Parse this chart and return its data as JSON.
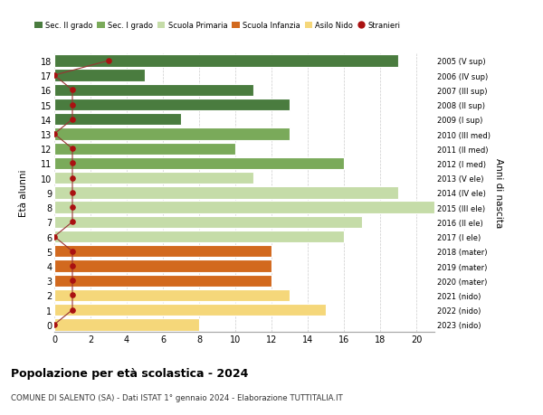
{
  "ages": [
    18,
    17,
    16,
    15,
    14,
    13,
    12,
    11,
    10,
    9,
    8,
    7,
    6,
    5,
    4,
    3,
    2,
    1,
    0
  ],
  "right_labels": [
    "2005 (V sup)",
    "2006 (IV sup)",
    "2007 (III sup)",
    "2008 (II sup)",
    "2009 (I sup)",
    "2010 (III med)",
    "2011 (II med)",
    "2012 (I med)",
    "2013 (V ele)",
    "2014 (IV ele)",
    "2015 (III ele)",
    "2016 (II ele)",
    "2017 (I ele)",
    "2018 (mater)",
    "2019 (mater)",
    "2020 (mater)",
    "2021 (nido)",
    "2022 (nido)",
    "2023 (nido)"
  ],
  "bar_values": [
    19,
    5,
    11,
    13,
    7,
    13,
    10,
    16,
    11,
    19,
    21,
    17,
    16,
    12,
    12,
    12,
    13,
    15,
    8
  ],
  "bar_colors": [
    "#4a7c3f",
    "#4a7c3f",
    "#4a7c3f",
    "#4a7c3f",
    "#4a7c3f",
    "#7aaa5a",
    "#7aaa5a",
    "#7aaa5a",
    "#c5dca8",
    "#c5dca8",
    "#c5dca8",
    "#c5dca8",
    "#c5dca8",
    "#d2691e",
    "#d2691e",
    "#d2691e",
    "#f5d77a",
    "#f5d77a",
    "#f5d77a"
  ],
  "stranieri_x": [
    3,
    0,
    1,
    1,
    1,
    0,
    1,
    1,
    1,
    1,
    1,
    1,
    0,
    1,
    1,
    1,
    1,
    1,
    0
  ],
  "legend_labels": [
    "Sec. II grado",
    "Sec. I grado",
    "Scuola Primaria",
    "Scuola Infanzia",
    "Asilo Nido",
    "Stranieri"
  ],
  "legend_colors": [
    "#4a7c3f",
    "#7aaa5a",
    "#c5dca8",
    "#d2691e",
    "#f5d77a",
    "#aa1111"
  ],
  "title": "Popolazione per età scolastica - 2024",
  "subtitle": "COMUNE DI SALENTO (SA) - Dati ISTAT 1° gennaio 2024 - Elaborazione TUTTITALIA.IT",
  "ylabel": "Età alunni",
  "right_ylabel": "Anni di nascita",
  "xlabel_vals": [
    0,
    2,
    4,
    6,
    8,
    10,
    12,
    14,
    16,
    18,
    20
  ],
  "xlim": [
    0,
    21
  ],
  "ylim": [
    -0.5,
    18.5
  ],
  "background_color": "#ffffff",
  "grid_color": "#cccccc",
  "bar_height": 0.82
}
